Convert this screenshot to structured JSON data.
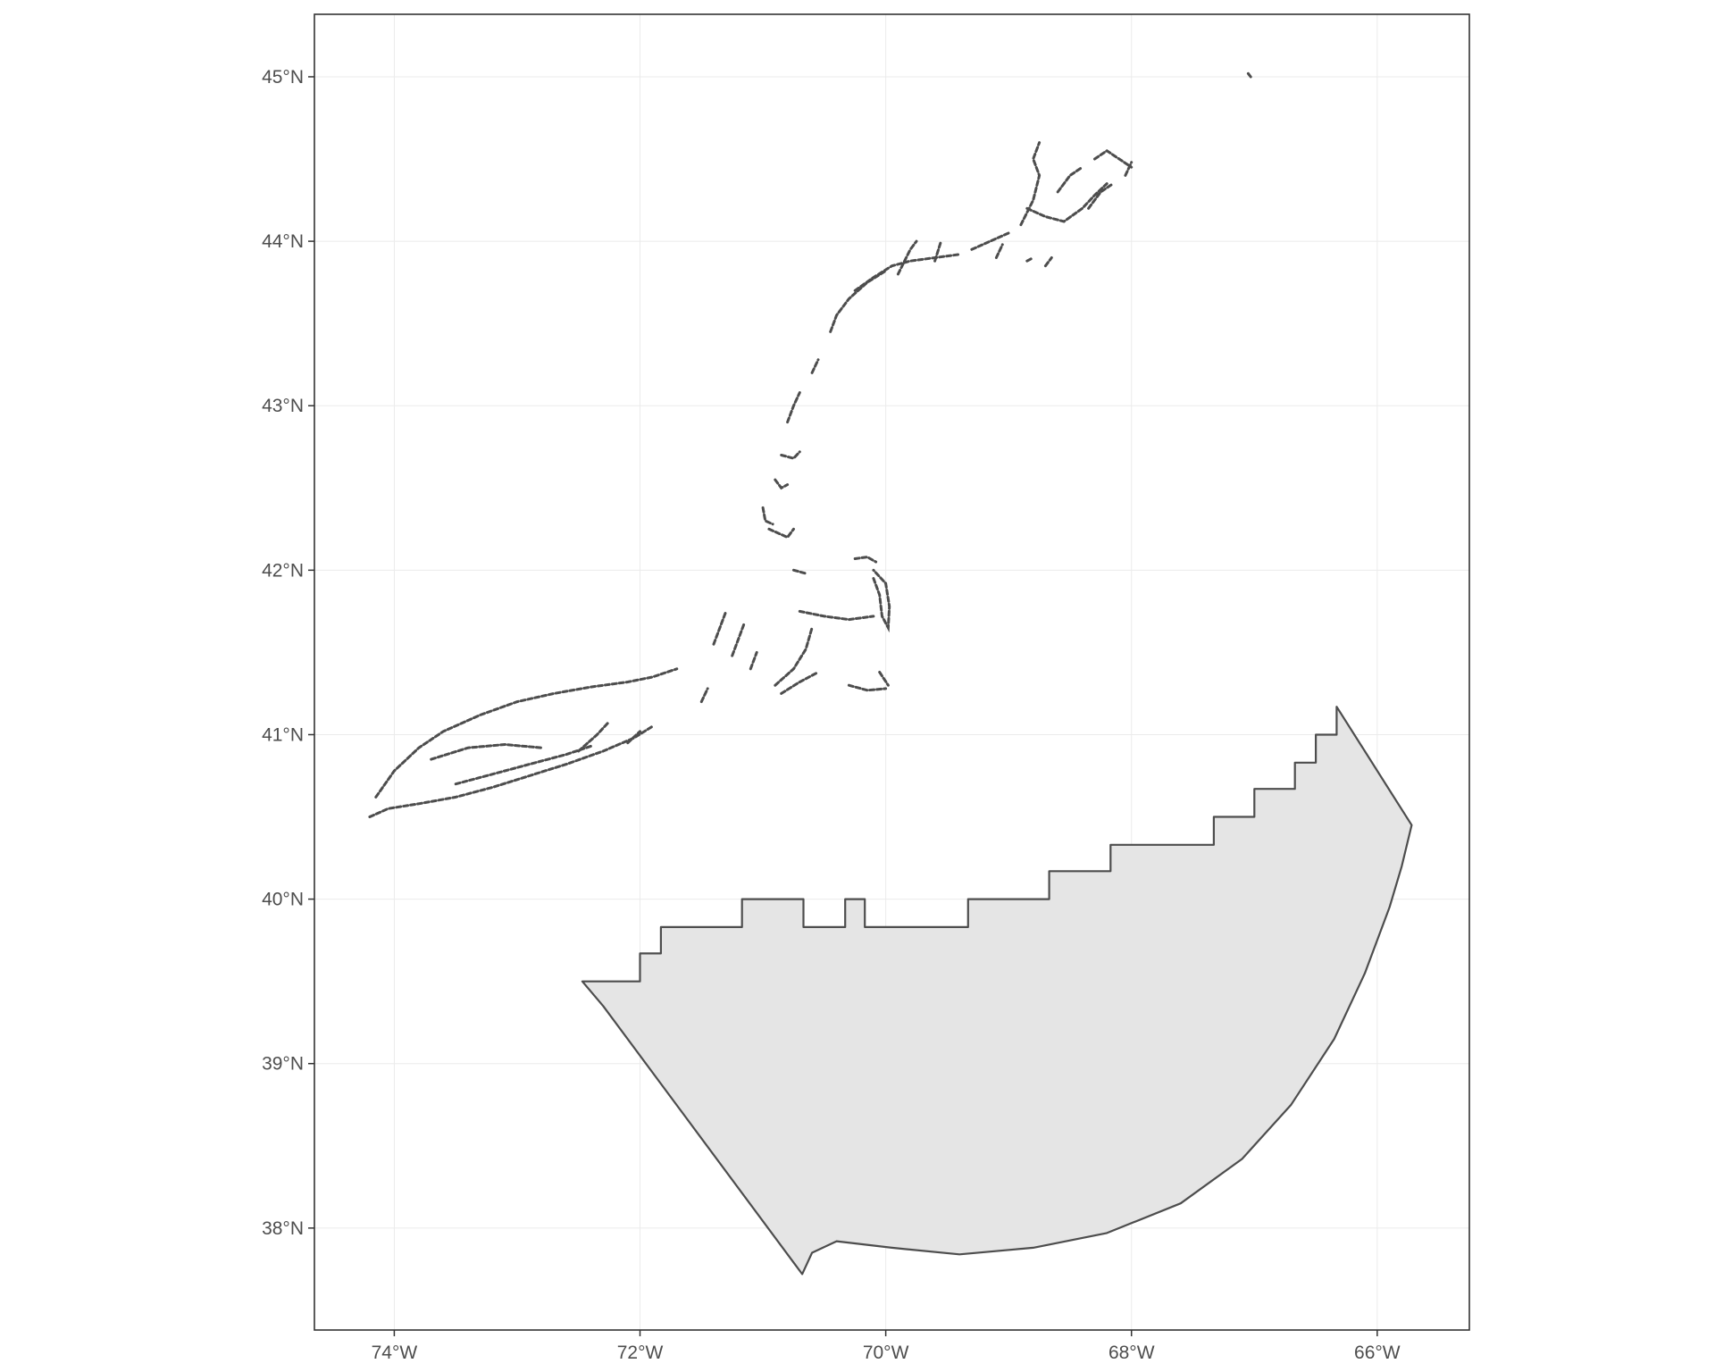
{
  "map": {
    "x_axis": {
      "range": [
        -74.65,
        -65.25
      ],
      "ticks": [
        {
          "value": -74,
          "label": "74°W"
        },
        {
          "value": -72,
          "label": "72°W"
        },
        {
          "value": -70,
          "label": "70°W"
        },
        {
          "value": -68,
          "label": "68°W"
        },
        {
          "value": -66,
          "label": "66°W"
        }
      ]
    },
    "y_axis": {
      "range": [
        37.38,
        45.38
      ],
      "ticks": [
        {
          "value": 38,
          "label": "38°N"
        },
        {
          "value": 39,
          "label": "39°N"
        },
        {
          "value": 40,
          "label": "40°N"
        },
        {
          "value": 41,
          "label": "41°N"
        },
        {
          "value": 42,
          "label": "42°N"
        },
        {
          "value": 43,
          "label": "43°N"
        },
        {
          "value": 44,
          "label": "44°N"
        },
        {
          "value": 45,
          "label": "45°N"
        }
      ]
    },
    "grid": true,
    "colors": {
      "panel_border": "#333333",
      "grid": "#ebebeb",
      "outline": "#4d4d4d",
      "polygon_fill": "#e5e5e5",
      "coastline": "#4d4d4d",
      "tick_text": "#4d4d4d"
    },
    "polygon": [
      [
        -72.47,
        39.5
      ],
      [
        -72.0,
        39.5
      ],
      [
        -72.0,
        39.67
      ],
      [
        -71.83,
        39.67
      ],
      [
        -71.83,
        39.83
      ],
      [
        -71.17,
        39.83
      ],
      [
        -71.17,
        40.0
      ],
      [
        -70.67,
        40.0
      ],
      [
        -70.67,
        39.83
      ],
      [
        -70.33,
        39.83
      ],
      [
        -70.33,
        40.0
      ],
      [
        -70.17,
        40.0
      ],
      [
        -70.17,
        39.83
      ],
      [
        -69.33,
        39.83
      ],
      [
        -69.33,
        40.0
      ],
      [
        -68.67,
        40.0
      ],
      [
        -68.67,
        40.17
      ],
      [
        -68.17,
        40.17
      ],
      [
        -68.17,
        40.33
      ],
      [
        -67.33,
        40.33
      ],
      [
        -67.33,
        40.5
      ],
      [
        -67.0,
        40.5
      ],
      [
        -67.0,
        40.67
      ],
      [
        -66.67,
        40.67
      ],
      [
        -66.67,
        40.83
      ],
      [
        -66.5,
        40.83
      ],
      [
        -66.5,
        41.0
      ],
      [
        -66.33,
        41.0
      ],
      [
        -66.33,
        41.17
      ],
      [
        -65.72,
        40.45
      ],
      [
        -65.8,
        40.2
      ],
      [
        -65.9,
        39.95
      ],
      [
        -66.1,
        39.55
      ],
      [
        -66.35,
        39.15
      ],
      [
        -66.7,
        38.75
      ],
      [
        -67.1,
        38.42
      ],
      [
        -67.6,
        38.15
      ],
      [
        -68.2,
        37.97
      ],
      [
        -68.8,
        37.88
      ],
      [
        -69.4,
        37.84
      ],
      [
        -69.95,
        37.88
      ],
      [
        -70.4,
        37.92
      ],
      [
        -70.6,
        37.85
      ],
      [
        -70.68,
        37.72
      ],
      [
        -72.3,
        39.35
      ],
      [
        -72.47,
        39.5
      ]
    ],
    "coastline_segments": [
      [
        [
          -74.2,
          40.5
        ],
        [
          -74.05,
          40.55
        ],
        [
          -73.8,
          40.58
        ],
        [
          -73.5,
          40.62
        ],
        [
          -73.2,
          40.68
        ],
        [
          -72.9,
          40.75
        ],
        [
          -72.6,
          40.82
        ],
        [
          -72.3,
          40.9
        ],
        [
          -72.05,
          40.98
        ],
        [
          -71.9,
          41.05
        ]
      ],
      [
        [
          -74.15,
          40.62
        ],
        [
          -74.0,
          40.78
        ],
        [
          -73.8,
          40.92
        ],
        [
          -73.6,
          41.02
        ],
        [
          -73.3,
          41.12
        ],
        [
          -73.0,
          41.2
        ],
        [
          -72.7,
          41.25
        ],
        [
          -72.4,
          41.29
        ],
        [
          -72.1,
          41.32
        ],
        [
          -71.9,
          41.35
        ],
        [
          -71.7,
          41.4
        ]
      ],
      [
        [
          -73.7,
          40.85
        ],
        [
          -73.4,
          40.92
        ],
        [
          -73.1,
          40.94
        ],
        [
          -72.8,
          40.92
        ]
      ],
      [
        [
          -73.5,
          40.7
        ],
        [
          -73.2,
          40.76
        ],
        [
          -72.9,
          40.82
        ],
        [
          -72.6,
          40.88
        ],
        [
          -72.4,
          40.93
        ]
      ],
      [
        [
          -72.5,
          40.9
        ],
        [
          -72.35,
          41.0
        ],
        [
          -72.25,
          41.08
        ]
      ],
      [
        [
          -72.1,
          40.95
        ],
        [
          -72.0,
          41.02
        ]
      ],
      [
        [
          -71.5,
          41.2
        ],
        [
          -71.45,
          41.28
        ]
      ],
      [
        [
          -71.4,
          41.55
        ],
        [
          -71.35,
          41.65
        ],
        [
          -71.3,
          41.75
        ]
      ],
      [
        [
          -71.25,
          41.48
        ],
        [
          -71.2,
          41.58
        ],
        [
          -71.15,
          41.68
        ]
      ],
      [
        [
          -71.1,
          41.4
        ],
        [
          -71.05,
          41.5
        ]
      ],
      [
        [
          -70.9,
          41.3
        ],
        [
          -70.75,
          41.4
        ],
        [
          -70.65,
          41.52
        ],
        [
          -70.6,
          41.65
        ]
      ],
      [
        [
          -70.85,
          41.25
        ],
        [
          -70.7,
          41.32
        ],
        [
          -70.55,
          41.38
        ]
      ],
      [
        [
          -70.7,
          41.75
        ],
        [
          -70.5,
          41.72
        ],
        [
          -70.3,
          41.7
        ],
        [
          -70.1,
          41.72
        ]
      ],
      [
        [
          -70.3,
          41.3
        ],
        [
          -70.15,
          41.27
        ],
        [
          -70.0,
          41.28
        ]
      ],
      [
        [
          -70.05,
          41.38
        ],
        [
          -69.98,
          41.3
        ]
      ],
      [
        [
          -70.1,
          41.95
        ],
        [
          -70.05,
          41.85
        ],
        [
          -70.03,
          41.72
        ],
        [
          -69.98,
          41.65
        ],
        [
          -69.97,
          41.78
        ],
        [
          -70.0,
          41.92
        ],
        [
          -70.1,
          42.0
        ]
      ],
      [
        [
          -70.25,
          42.07
        ],
        [
          -70.15,
          42.08
        ],
        [
          -70.08,
          42.05
        ]
      ],
      [
        [
          -70.75,
          42.0
        ],
        [
          -70.65,
          41.98
        ]
      ],
      [
        [
          -70.95,
          42.25
        ],
        [
          -70.8,
          42.2
        ],
        [
          -70.75,
          42.25
        ]
      ],
      [
        [
          -71.0,
          42.38
        ],
        [
          -70.98,
          42.3
        ],
        [
          -70.92,
          42.28
        ]
      ],
      [
        [
          -70.9,
          42.55
        ],
        [
          -70.85,
          42.5
        ],
        [
          -70.8,
          42.52
        ]
      ],
      [
        [
          -70.85,
          42.7
        ],
        [
          -70.75,
          42.68
        ],
        [
          -70.7,
          42.72
        ]
      ],
      [
        [
          -70.8,
          42.9
        ],
        [
          -70.75,
          43.0
        ],
        [
          -70.7,
          43.08
        ]
      ],
      [
        [
          -70.6,
          43.2
        ],
        [
          -70.55,
          43.28
        ]
      ],
      [
        [
          -70.45,
          43.45
        ],
        [
          -70.4,
          43.55
        ],
        [
          -70.3,
          43.65
        ],
        [
          -70.15,
          43.75
        ],
        [
          -70.0,
          43.82
        ]
      ],
      [
        [
          -70.25,
          43.7
        ],
        [
          -70.1,
          43.78
        ],
        [
          -69.95,
          43.85
        ],
        [
          -69.8,
          43.88
        ],
        [
          -69.6,
          43.9
        ],
        [
          -69.4,
          43.92
        ]
      ],
      [
        [
          -69.9,
          43.8
        ],
        [
          -69.8,
          43.95
        ],
        [
          -69.75,
          44.0
        ]
      ],
      [
        [
          -69.6,
          43.88
        ],
        [
          -69.55,
          44.0
        ]
      ],
      [
        [
          -69.3,
          43.95
        ],
        [
          -69.15,
          44.0
        ],
        [
          -69.0,
          44.05
        ]
      ],
      [
        [
          -69.1,
          43.9
        ],
        [
          -69.05,
          43.98
        ]
      ],
      [
        [
          -68.9,
          44.1
        ],
        [
          -68.8,
          44.25
        ],
        [
          -68.75,
          44.4
        ],
        [
          -68.8,
          44.5
        ],
        [
          -68.75,
          44.6
        ]
      ],
      [
        [
          -68.85,
          44.2
        ],
        [
          -68.7,
          44.15
        ],
        [
          -68.55,
          44.12
        ],
        [
          -68.4,
          44.2
        ],
        [
          -68.3,
          44.28
        ],
        [
          -68.2,
          44.35
        ]
      ],
      [
        [
          -68.6,
          44.3
        ],
        [
          -68.5,
          44.4
        ],
        [
          -68.4,
          44.45
        ]
      ],
      [
        [
          -68.3,
          44.5
        ],
        [
          -68.2,
          44.55
        ],
        [
          -68.1,
          44.5
        ],
        [
          -68.0,
          44.45
        ]
      ],
      [
        [
          -68.35,
          44.2
        ],
        [
          -68.25,
          44.3
        ],
        [
          -68.15,
          44.35
        ]
      ],
      [
        [
          -68.05,
          44.4
        ],
        [
          -68.0,
          44.48
        ]
      ],
      [
        [
          -68.7,
          43.85
        ],
        [
          -68.65,
          43.9
        ]
      ],
      [
        [
          -68.85,
          43.88
        ],
        [
          -68.8,
          43.9
        ]
      ],
      [
        [
          -67.05,
          45.02
        ],
        [
          -67.03,
          45.0
        ]
      ]
    ]
  }
}
